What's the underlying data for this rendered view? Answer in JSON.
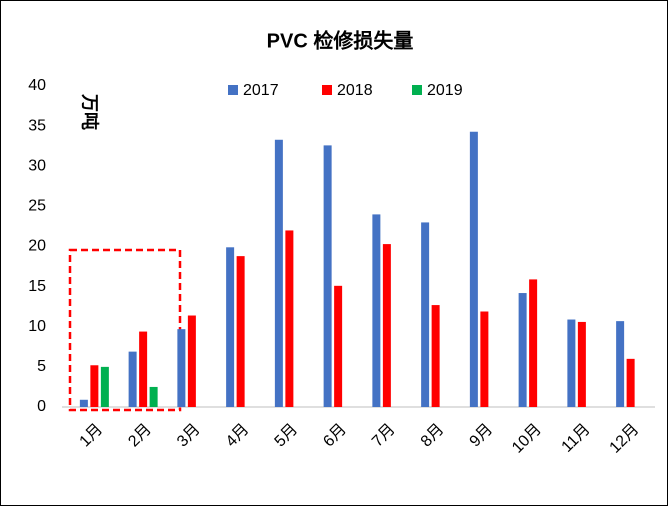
{
  "chart_data": {
    "type": "bar",
    "title": "PVC 检修损失量",
    "y_label": "万吨",
    "categories": [
      "1月",
      "2月",
      "3月",
      "4月",
      "5月",
      "6月",
      "7月",
      "8月",
      "9月",
      "10月",
      "11月",
      "12月"
    ],
    "series": [
      {
        "name": "2017",
        "color": "#4472c4",
        "values": [
          0.9,
          6.9,
          9.7,
          19.9,
          33.3,
          32.6,
          24,
          23,
          34.3,
          14.2,
          10.9,
          10.7
        ]
      },
      {
        "name": "2018",
        "color": "#ff0000",
        "values": [
          5.2,
          9.4,
          11.4,
          18.8,
          22,
          15.1,
          20.3,
          12.7,
          11.9,
          15.9,
          10.6,
          6
        ]
      },
      {
        "name": "2019",
        "color": "#00b050",
        "values": [
          5,
          2.5,
          null,
          null,
          null,
          null,
          null,
          null,
          null,
          null,
          null,
          null
        ]
      }
    ],
    "ylim": [
      0,
      40
    ],
    "yticks": [
      0,
      5,
      10,
      15,
      20,
      25,
      30,
      35,
      40
    ],
    "grid": false,
    "legend": "top"
  }
}
